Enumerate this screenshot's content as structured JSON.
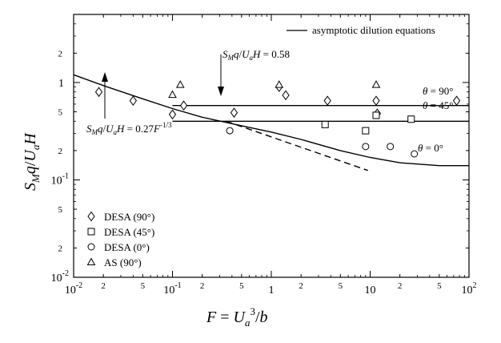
{
  "chart_data": {
    "type": "scatter",
    "xscale": "log",
    "yscale": "log",
    "xlim": [
      0.01,
      100
    ],
    "ylim": [
      0.01,
      5
    ],
    "xlabel": "F = Ua³/b",
    "ylabel": "SMq/UaH",
    "x_major_ticks": [
      {
        "value": 0.01,
        "label": "10",
        "exp": "-2"
      },
      {
        "value": 0.1,
        "label": "10",
        "exp": "-1"
      },
      {
        "value": 1,
        "label": "1",
        "exp": ""
      },
      {
        "value": 10,
        "label": "10",
        "exp": ""
      },
      {
        "value": 100,
        "label": "10",
        "exp": "2"
      }
    ],
    "x_minor_ticks": [
      {
        "value": 0.02,
        "label": "2"
      },
      {
        "value": 0.05,
        "label": "5"
      },
      {
        "value": 0.2,
        "label": "2"
      },
      {
        "value": 0.5,
        "label": "5"
      },
      {
        "value": 2,
        "label": "2"
      },
      {
        "value": 5,
        "label": "5"
      },
      {
        "value": 20,
        "label": "2"
      },
      {
        "value": 50,
        "label": "5"
      }
    ],
    "y_major_ticks": [
      {
        "value": 0.01,
        "label": "10",
        "exp": "-2"
      },
      {
        "value": 0.1,
        "label": "10",
        "exp": "-1"
      },
      {
        "value": 1,
        "label": "1",
        "exp": ""
      }
    ],
    "y_minor_ticks": [
      {
        "value": 0.02,
        "label": "2"
      },
      {
        "value": 0.05,
        "label": "5"
      },
      {
        "value": 0.2,
        "label": "2"
      },
      {
        "value": 0.5,
        "label": "5"
      },
      {
        "value": 2,
        "label": "2"
      }
    ],
    "series": [
      {
        "name": "DESA (90°)",
        "marker": "diamond",
        "x": [
          0.018,
          0.04,
          0.1,
          0.13,
          0.42,
          1.2,
          1.4,
          3.7,
          11.5,
          11.8,
          75
        ],
        "y": [
          0.8,
          0.65,
          0.47,
          0.58,
          0.49,
          0.9,
          0.74,
          0.65,
          0.65,
          0.48,
          0.65
        ]
      },
      {
        "name": "DESA (45°)",
        "marker": "square",
        "x": [
          3.5,
          9,
          11.5,
          26
        ],
        "y": [
          0.37,
          0.32,
          0.46,
          0.42
        ]
      },
      {
        "name": "DESA (0°)",
        "marker": "circle",
        "x": [
          0.38,
          9,
          16,
          28
        ],
        "y": [
          0.32,
          0.22,
          0.22,
          0.185
        ]
      },
      {
        "name": "AS (90°)",
        "marker": "triangle",
        "x": [
          0.1,
          0.12,
          1.2,
          11.5
        ],
        "y": [
          0.75,
          0.95,
          0.95,
          0.95
        ]
      }
    ],
    "curves": [
      {
        "name": "asymptotic dilution equations",
        "style": "solid",
        "x": [
          0.01,
          0.02,
          0.05,
          0.1,
          0.2,
          0.5,
          1,
          2,
          5,
          10,
          20,
          50,
          100
        ],
        "y": [
          1.2,
          0.93,
          0.68,
          0.54,
          0.44,
          0.36,
          0.31,
          0.26,
          0.2,
          0.17,
          0.15,
          0.14,
          0.14
        ]
      },
      {
        "style": "dashed",
        "x": [
          0.35,
          9.5
        ],
        "y": [
          0.4,
          0.125
        ]
      },
      {
        "style": "solid",
        "x": [
          0.1,
          100
        ],
        "y": [
          0.58,
          0.58
        ],
        "label": "θ = 90°"
      },
      {
        "style": "solid",
        "x": [
          0.1,
          100
        ],
        "y": [
          0.4,
          0.4
        ],
        "label": "θ = 45°"
      }
    ],
    "annotations": [
      {
        "text": "SMq/UaH = 0.58"
      },
      {
        "text": "SMq/UaH = 0.27F-1/3"
      },
      {
        "text": "θ = 0°"
      }
    ],
    "legend_position": "bottom-left",
    "grid": false
  }
}
